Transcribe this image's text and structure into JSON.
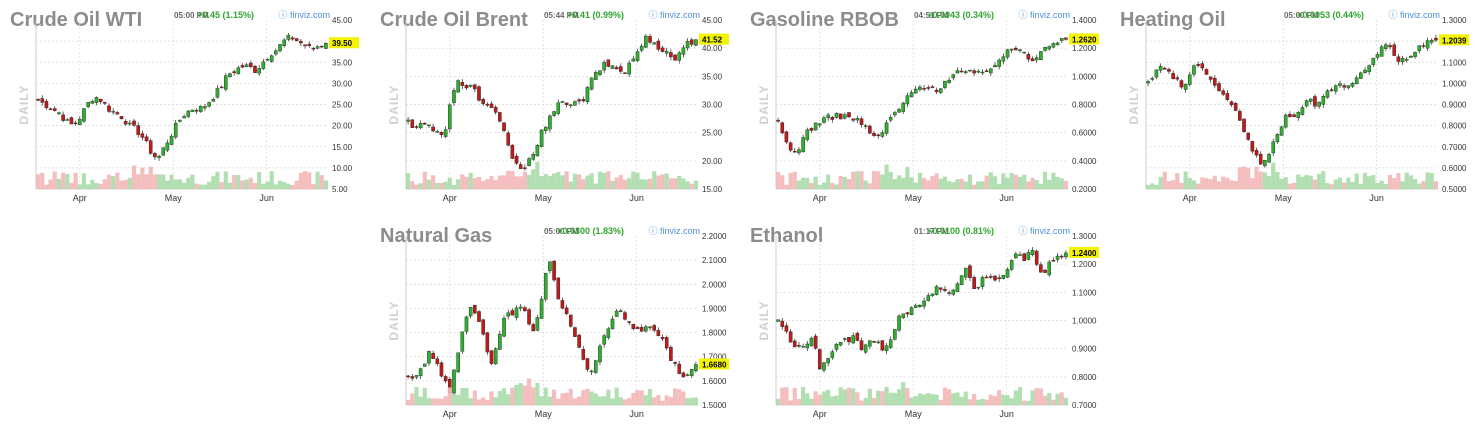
{
  "common": {
    "source": "finviz.com",
    "period_label": "DAILY",
    "months": [
      "Apr",
      "May",
      "Jun"
    ],
    "colors": {
      "up": "#2eaf2e",
      "down": "#c11a1a",
      "vol_up": "#a8dca8",
      "vol_down": "#f4b7b7",
      "price_tag": "#f4f400",
      "title": "#8c8c8c",
      "change": "#2fa52f"
    }
  },
  "chart_data": [
    {
      "type": "candlestick",
      "title": "Crude Oil WTI",
      "time": "05:00 PM",
      "change": "+0.45 (1.15%)",
      "last_price": "39.50",
      "ylim": [
        5,
        45
      ],
      "y_ticks": [
        "45.00",
        "40.00",
        "35.00",
        "30.00",
        "25.00",
        "20.00",
        "15.00",
        "10.00",
        "5.00"
      ],
      "x_ticks": [
        "Apr",
        "May",
        "Jun"
      ],
      "grid": true,
      "close_path": [
        26,
        25,
        24,
        23,
        21,
        20,
        22,
        25,
        27,
        26,
        24,
        23,
        22,
        20,
        19,
        17,
        14,
        12,
        15,
        18,
        21,
        23,
        24,
        24,
        25,
        27,
        29,
        32,
        33,
        34,
        34,
        33,
        35,
        37,
        38,
        40,
        41,
        40,
        39,
        38,
        39,
        39.5
      ]
    },
    {
      "type": "candlestick",
      "title": "Crude Oil Brent",
      "time": "05:44 PM",
      "change": "+0.41 (0.99%)",
      "last_price": "41.52",
      "ylim": [
        15,
        45
      ],
      "y_ticks": [
        "45.00",
        "40.00",
        "35.00",
        "30.00",
        "25.00",
        "20.00",
        "15.00"
      ],
      "x_ticks": [
        "Apr",
        "May",
        "Jun"
      ],
      "grid": true,
      "close_path": [
        27,
        26,
        27,
        26,
        25,
        24,
        30,
        34,
        33,
        34,
        31,
        30,
        29,
        27,
        24,
        20,
        18,
        20,
        22,
        25,
        27,
        29,
        31,
        30,
        30,
        31,
        34,
        36,
        37,
        37,
        36,
        36,
        38,
        40,
        42,
        41,
        40,
        39,
        38,
        40,
        41,
        41.52
      ]
    },
    {
      "type": "candlestick",
      "title": "Gasoline RBOB",
      "time": "04:51 PM",
      "change": "+0.0043 (0.34%)",
      "last_price": "1.2620",
      "ylim": [
        0.2,
        1.4
      ],
      "y_ticks": [
        "1.4000",
        "1.2000",
        "1.0000",
        "0.8000",
        "0.6000",
        "0.4000",
        "0.2000"
      ],
      "x_ticks": [
        "Apr",
        "May",
        "Jun"
      ],
      "grid": true,
      "close_path": [
        0.66,
        0.55,
        0.45,
        0.5,
        0.6,
        0.65,
        0.68,
        0.7,
        0.72,
        0.72,
        0.71,
        0.7,
        0.66,
        0.6,
        0.56,
        0.62,
        0.7,
        0.76,
        0.82,
        0.88,
        0.92,
        0.94,
        0.9,
        0.92,
        0.98,
        1.02,
        1.04,
        1.03,
        1.01,
        1.02,
        1.06,
        1.1,
        1.14,
        1.18,
        1.2,
        1.18,
        1.12,
        1.16,
        1.22,
        1.24,
        1.25,
        1.262
      ]
    },
    {
      "type": "candlestick",
      "title": "Heating Oil",
      "time": "05:00 PM",
      "change": "+0.0053 (0.44%)",
      "last_price": "1.2039",
      "ylim": [
        0.5,
        1.3
      ],
      "y_ticks": [
        "1.3000",
        "1.2000",
        "1.1000",
        "1.0000",
        "0.9000",
        "0.8000",
        "0.7000",
        "0.6000",
        "0.5000"
      ],
      "x_ticks": [
        "Apr",
        "May",
        "Jun"
      ],
      "grid": true,
      "close_path": [
        1.02,
        1.05,
        1.08,
        1.06,
        1.02,
        0.98,
        1.04,
        1.1,
        1.06,
        1.0,
        0.96,
        0.92,
        0.88,
        0.84,
        0.74,
        0.68,
        0.62,
        0.66,
        0.72,
        0.8,
        0.86,
        0.84,
        0.88,
        0.92,
        0.9,
        0.94,
        0.98,
        1.0,
        0.98,
        0.99,
        1.02,
        1.08,
        1.12,
        1.15,
        1.18,
        1.14,
        1.1,
        1.12,
        1.16,
        1.18,
        1.2,
        1.2039
      ]
    },
    {
      "type": "candlestick",
      "title": "Natural Gas",
      "time": "05:00 PM",
      "change": "+0.0300 (1.83%)",
      "last_price": "1.6680",
      "ylim": [
        1.5,
        2.2
      ],
      "y_ticks": [
        "2.2000",
        "2.1000",
        "2.0000",
        "1.9000",
        "1.8000",
        "1.7000",
        "1.6000",
        "1.5000"
      ],
      "x_ticks": [
        "Apr",
        "May",
        "Jun"
      ],
      "grid": true,
      "close_path": [
        1.62,
        1.6,
        1.65,
        1.72,
        1.68,
        1.6,
        1.56,
        1.7,
        1.86,
        1.9,
        1.84,
        1.76,
        1.66,
        1.8,
        1.9,
        1.88,
        1.92,
        1.86,
        1.8,
        1.95,
        2.12,
        1.98,
        1.9,
        1.84,
        1.76,
        1.68,
        1.62,
        1.72,
        1.8,
        1.84,
        1.9,
        1.86,
        1.82,
        1.8,
        1.84,
        1.82,
        1.78,
        1.72,
        1.66,
        1.62,
        1.64,
        1.668
      ]
    },
    {
      "type": "candlestick",
      "title": "Ethanol",
      "time": "01:17 PM",
      "change": "+0.0100 (0.81%)",
      "last_price": "1.2400",
      "ylim": [
        0.7,
        1.3
      ],
      "y_ticks": [
        "1.3000",
        "1.2000",
        "1.1000",
        "1.0000",
        "0.9000",
        "0.8000",
        "0.7000"
      ],
      "x_ticks": [
        "Apr",
        "May",
        "Jun"
      ],
      "grid": true,
      "close_path": [
        1.0,
        0.98,
        0.92,
        0.9,
        0.91,
        0.94,
        0.82,
        0.86,
        0.9,
        0.92,
        0.93,
        0.95,
        0.9,
        0.92,
        0.94,
        0.9,
        0.92,
        1.0,
        1.02,
        1.04,
        1.06,
        1.08,
        1.1,
        1.12,
        1.11,
        1.1,
        1.16,
        1.18,
        1.12,
        1.14,
        1.16,
        1.15,
        1.16,
        1.2,
        1.24,
        1.22,
        1.26,
        1.2,
        1.16,
        1.22,
        1.23,
        1.24
      ]
    }
  ]
}
